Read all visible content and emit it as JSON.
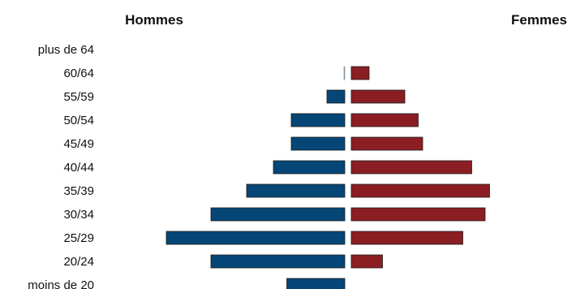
{
  "chart_data": {
    "type": "bar",
    "subtype": "population-pyramid",
    "categories": [
      "plus de 64",
      "60/64",
      "55/59",
      "50/54",
      "45/49",
      "40/44",
      "35/39",
      "30/34",
      "25/29",
      "20/24",
      "moins de 20"
    ],
    "series": [
      {
        "name": "Hommes",
        "side": "left",
        "color": "#054677",
        "values": [
          0,
          0.1,
          2,
          6,
          6,
          8,
          11,
          15,
          20,
          15,
          6.5
        ]
      },
      {
        "name": "Femmes",
        "side": "right",
        "color": "#8b1e23",
        "values": [
          0,
          2,
          6,
          7.5,
          8,
          13.5,
          15.5,
          15,
          12.5,
          3.5,
          0
        ]
      }
    ],
    "title": "",
    "xlabel": "",
    "ylabel": "",
    "xlim": [
      0,
      20
    ],
    "grid": false,
    "legend": "none"
  },
  "header_left": "Hommes",
  "header_right": "Femmes"
}
